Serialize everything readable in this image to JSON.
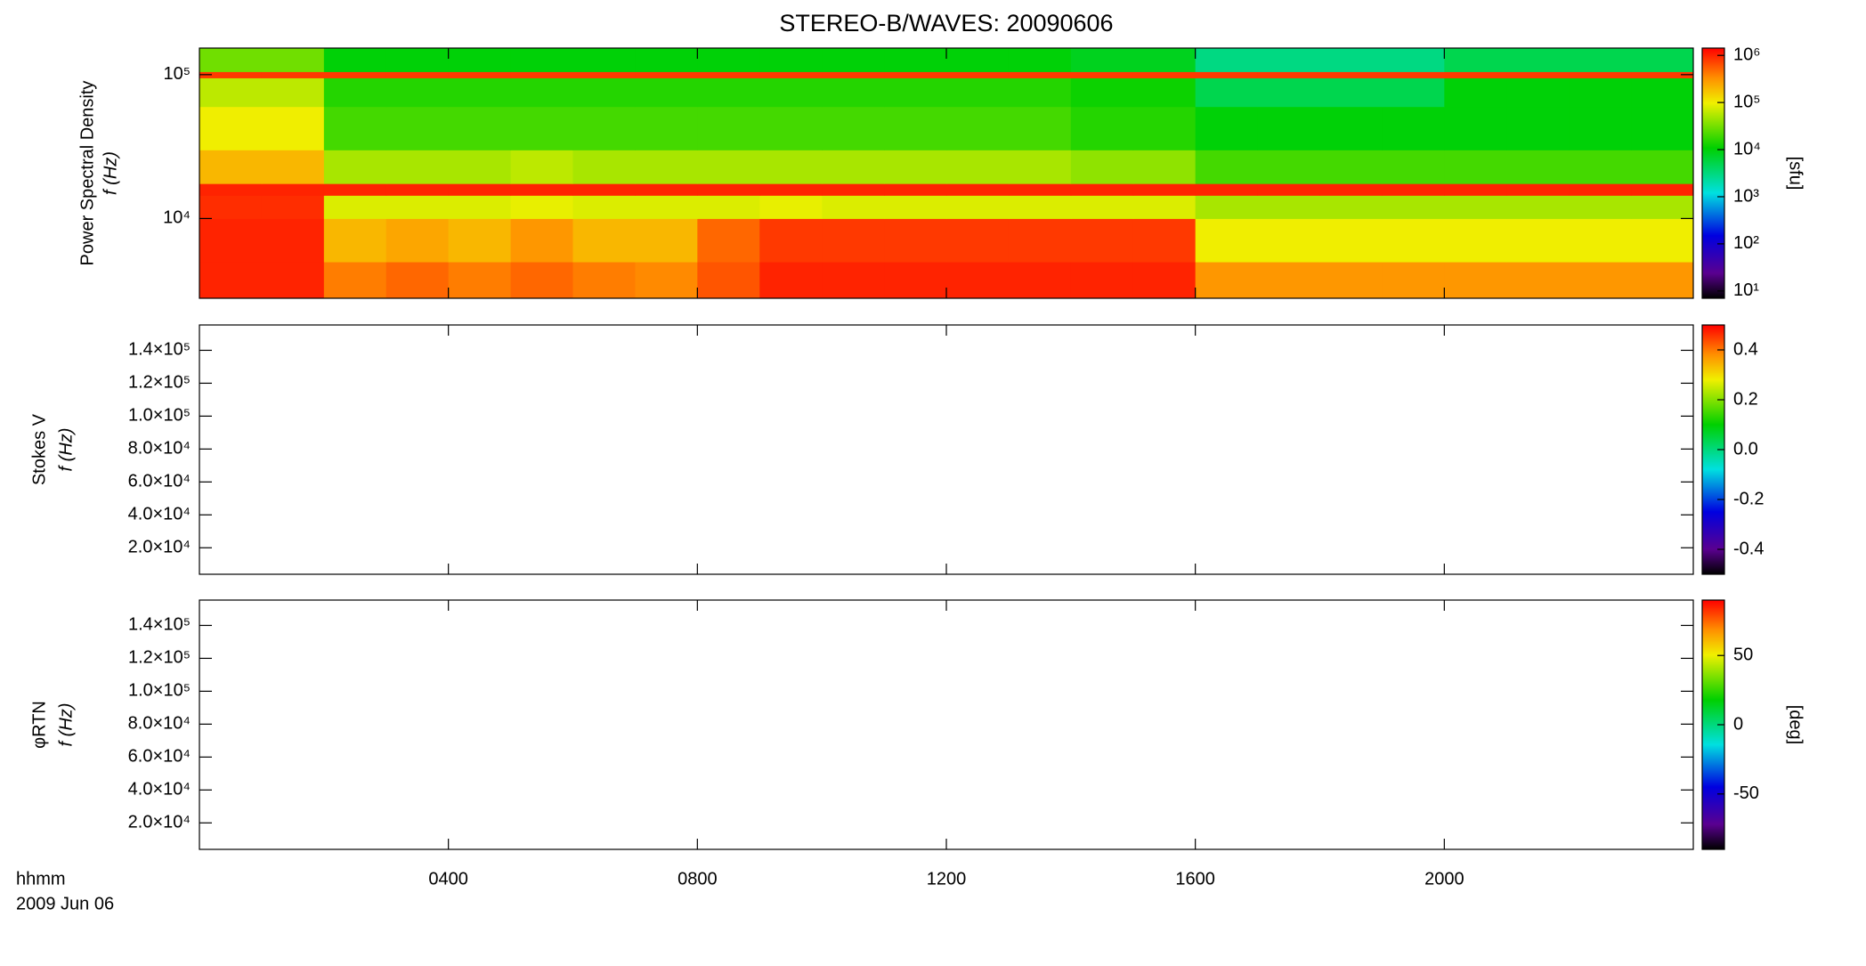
{
  "chart_data": [
    {
      "type": "heatmap",
      "title": "STEREO-B/WAVES: 20090606",
      "ylabel": [
        "Power Spectral Density",
        "f (Hz)"
      ],
      "xlim": [
        0,
        24
      ],
      "xticks": [
        {
          "value": 4,
          "label": "0400"
        },
        {
          "value": 8,
          "label": "0800"
        },
        {
          "value": 12,
          "label": "1200"
        },
        {
          "value": 16,
          "label": "1600"
        },
        {
          "value": 20,
          "label": "2000"
        }
      ],
      "ylim": [
        2790,
        153000
      ],
      "ylog": true,
      "yticks": [
        {
          "value": 10000,
          "label": "10⁴"
        },
        {
          "value": 100000,
          "label": "10⁵"
        }
      ],
      "x_bins": [
        0,
        1,
        2,
        3,
        4,
        5,
        6,
        7,
        8,
        9,
        10,
        11,
        12,
        13,
        14,
        15,
        16,
        17,
        18,
        19,
        20,
        21,
        22,
        23,
        24
      ],
      "y_bins": [
        2790,
        5000,
        10000,
        14500,
        17500,
        30000,
        60000,
        95000,
        105000,
        153000
      ],
      "z": [
        [
          1000000,
          1000000,
          400000,
          500000,
          400000,
          500000,
          400000,
          350000,
          600000,
          1000000,
          1000000,
          1000000,
          1000000,
          1000000,
          1000000,
          1000000,
          300000,
          300000,
          300000,
          300000,
          300000,
          300000,
          300000,
          300000
        ],
        [
          1000000,
          1000000,
          200000,
          250000,
          200000,
          300000,
          200000,
          200000,
          500000,
          800000,
          800000,
          800000,
          800000,
          800000,
          800000,
          800000,
          100000,
          100000,
          100000,
          100000,
          100000,
          100000,
          100000,
          100000
        ],
        [
          900000,
          900000,
          80000,
          80000,
          80000,
          90000,
          80000,
          80000,
          80000,
          90000,
          80000,
          80000,
          80000,
          80000,
          80000,
          80000,
          50000,
          50000,
          50000,
          50000,
          50000,
          50000,
          50000,
          50000
        ],
        [
          1000000,
          1000000,
          1000000,
          1000000,
          1000000,
          1000000,
          1000000,
          1000000,
          1000000,
          1000000,
          1000000,
          1000000,
          1000000,
          1000000,
          1000000,
          1000000,
          1000000,
          1000000,
          1000000,
          1000000,
          1000000,
          1000000,
          1000000,
          1000000
        ],
        [
          200000,
          200000,
          50000,
          50000,
          50000,
          60000,
          50000,
          50000,
          50000,
          50000,
          50000,
          50000,
          50000,
          50000,
          40000,
          40000,
          20000,
          20000,
          20000,
          20000,
          20000,
          20000,
          20000,
          20000
        ],
        [
          100000,
          100000,
          20000,
          20000,
          20000,
          20000,
          20000,
          20000,
          20000,
          20000,
          20000,
          20000,
          20000,
          20000,
          15000,
          15000,
          10000,
          10000,
          10000,
          10000,
          10000,
          10000,
          10000,
          10000
        ],
        [
          60000,
          60000,
          15000,
          15000,
          15000,
          15000,
          15000,
          15000,
          15000,
          15000,
          15000,
          15000,
          15000,
          15000,
          12000,
          12000,
          5000,
          5000,
          5000,
          5000,
          10000,
          10000,
          10000,
          10000
        ],
        [
          800000,
          800000,
          800000,
          800000,
          800000,
          800000,
          800000,
          800000,
          800000,
          800000,
          800000,
          800000,
          800000,
          800000,
          800000,
          800000,
          800000,
          800000,
          800000,
          800000,
          800000,
          800000,
          800000,
          800000
        ],
        [
          30000,
          30000,
          10000,
          10000,
          10000,
          10000,
          10000,
          10000,
          10000,
          10000,
          10000,
          10000,
          10000,
          10000,
          8000,
          8000,
          3000,
          3000,
          3000,
          3000,
          5000,
          5000,
          5000,
          5000
        ]
      ],
      "clim": [
        7,
        1430000
      ],
      "clog": true,
      "cticks": [
        {
          "value": 10,
          "label": "10¹"
        },
        {
          "value": 100,
          "label": "10²"
        },
        {
          "value": 1000,
          "label": "10³"
        },
        {
          "value": 10000,
          "label": "10⁴"
        },
        {
          "value": 100000,
          "label": "10⁵"
        },
        {
          "value": 1000000,
          "label": "10⁶"
        }
      ],
      "clabel": "[sfu]"
    },
    {
      "type": "heatmap",
      "ylabel": [
        "Stokes V",
        "f (Hz)"
      ],
      "xlim": [
        0,
        24
      ],
      "xticks": [
        {
          "value": 4,
          "label": "0400"
        },
        {
          "value": 8,
          "label": "0800"
        },
        {
          "value": 12,
          "label": "1200"
        },
        {
          "value": 16,
          "label": "1600"
        },
        {
          "value": 20,
          "label": "2000"
        }
      ],
      "ylim": [
        3900,
        155400
      ],
      "yticks": [
        {
          "value": 20000,
          "label": "2.0×10⁴"
        },
        {
          "value": 40000,
          "label": "4.0×10⁴"
        },
        {
          "value": 60000,
          "label": "6.0×10⁴"
        },
        {
          "value": 80000,
          "label": "8.0×10⁴"
        },
        {
          "value": 100000,
          "label": "1.0×10⁵"
        },
        {
          "value": 120000,
          "label": "1.2×10⁵"
        },
        {
          "value": 140000,
          "label": "1.4×10⁵"
        }
      ],
      "clim": [
        -0.5,
        0.5
      ],
      "cticks": [
        -0.4,
        -0.2,
        {
          "value": 0,
          "label": "0.0"
        },
        0.2,
        0.4
      ]
    },
    {
      "type": "heatmap",
      "ylabel": [
        "φRTN",
        "f (Hz)"
      ],
      "xlim": [
        0,
        24
      ],
      "xticks": [
        {
          "value": 4,
          "label": "0400"
        },
        {
          "value": 8,
          "label": "0800"
        },
        {
          "value": 12,
          "label": "1200"
        },
        {
          "value": 16,
          "label": "1600"
        },
        {
          "value": 20,
          "label": "2000"
        }
      ],
      "ylim": [
        3900,
        155400
      ],
      "yticks": [
        {
          "value": 20000,
          "label": "2.0×10⁴"
        },
        {
          "value": 40000,
          "label": "4.0×10⁴"
        },
        {
          "value": 60000,
          "label": "6.0×10⁴"
        },
        {
          "value": 80000,
          "label": "8.0×10⁴"
        },
        {
          "value": 100000,
          "label": "1.0×10⁵"
        },
        {
          "value": 120000,
          "label": "1.2×10⁵"
        },
        {
          "value": 140000,
          "label": "1.4×10⁵"
        }
      ],
      "clim": [
        -90,
        90
      ],
      "cticks": [
        -50,
        0,
        50
      ],
      "clabel": "[deg]",
      "xlabel": "hhmm",
      "date": "2009 Jun 06"
    }
  ]
}
